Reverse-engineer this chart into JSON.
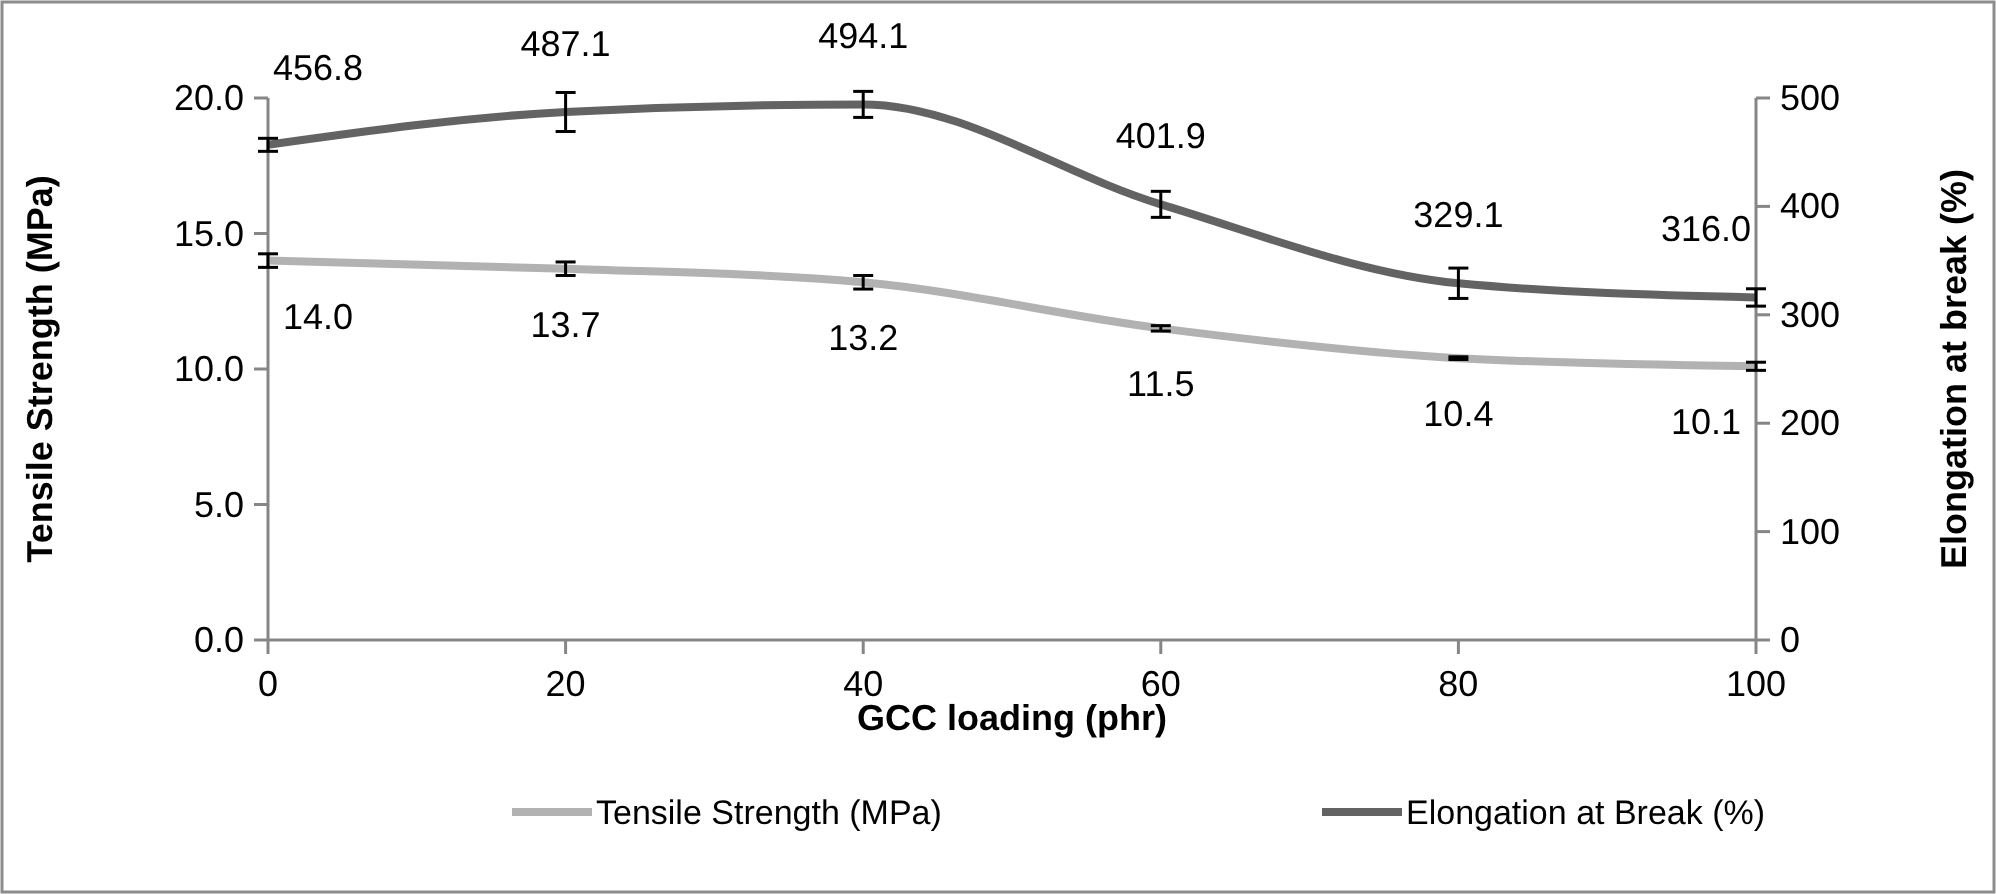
{
  "chart_data": {
    "type": "line",
    "xlabel": "GCC loading (phr)",
    "ylabel": "Tensile Strength (MPa)",
    "y2label": "Elongation at break (%)",
    "x": [
      0,
      20,
      40,
      60,
      80,
      100
    ],
    "xlim": [
      0,
      100
    ],
    "xticks": [
      0,
      20,
      40,
      60,
      80,
      100
    ],
    "ylim": [
      0,
      20
    ],
    "yticks": [
      {
        "value": 0,
        "label": "0.0"
      },
      {
        "value": 5,
        "label": "5.0"
      },
      {
        "value": 10,
        "label": "10.0"
      },
      {
        "value": 15,
        "label": "15.0"
      },
      {
        "value": 20,
        "label": "20.0"
      }
    ],
    "y2lim": [
      0,
      500
    ],
    "y2ticks": [
      0,
      100,
      200,
      300,
      400,
      500
    ],
    "series": [
      {
        "name": "Tensile Strength (MPa)",
        "color": "#b2b2b2",
        "values": [
          14.0,
          13.7,
          13.2,
          11.5,
          10.4,
          10.1
        ],
        "errors": [
          0.25,
          0.25,
          0.25,
          0.1,
          0.05,
          0.15
        ],
        "value_labels": [
          "14.0",
          "13.7",
          "13.2",
          "11.5",
          "10.4",
          "10.1"
        ]
      },
      {
        "name": "Elongation at Break (%)",
        "color": "#636363",
        "axis": "y2",
        "values": [
          456.8,
          487.1,
          494.1,
          401.9,
          329.1,
          316.0
        ],
        "errors": [
          6,
          18,
          12,
          12,
          14,
          8
        ],
        "value_labels": [
          "456.8",
          "487.1",
          "494.1",
          "401.9",
          "329.1",
          "316.0"
        ]
      }
    ],
    "grid": false,
    "legend": "bottom",
    "marker": "none",
    "line_style": "solid"
  }
}
